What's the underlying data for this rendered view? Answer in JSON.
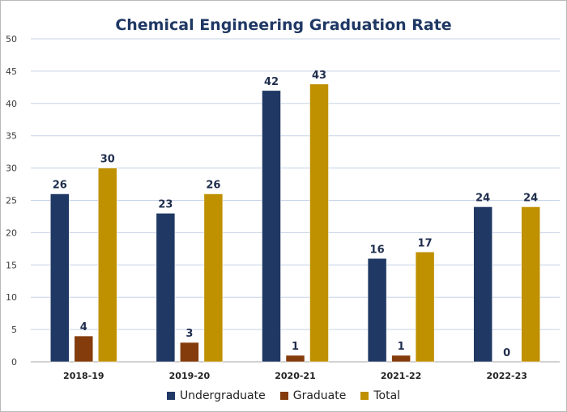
{
  "chart_data": {
    "type": "bar",
    "title": "Chemical Engineering Graduation Rate",
    "xlabel": "",
    "ylabel": "",
    "ylim": [
      0,
      50
    ],
    "yticks": [
      0,
      5,
      10,
      15,
      20,
      25,
      30,
      35,
      40,
      45,
      50
    ],
    "grid": true,
    "legend_position": "bottom",
    "categories": [
      "2018-19",
      "2019-20",
      "2020-21",
      "2021-22",
      "2022-23"
    ],
    "series": [
      {
        "name": "Undergraduate",
        "color": "#203864",
        "values": [
          26,
          23,
          42,
          16,
          24
        ]
      },
      {
        "name": "Graduate",
        "color": "#843c0c",
        "values": [
          4,
          3,
          1,
          1,
          0
        ]
      },
      {
        "name": "Total",
        "color": "#bf9000",
        "values": [
          30,
          26,
          43,
          17,
          24
        ]
      }
    ]
  }
}
